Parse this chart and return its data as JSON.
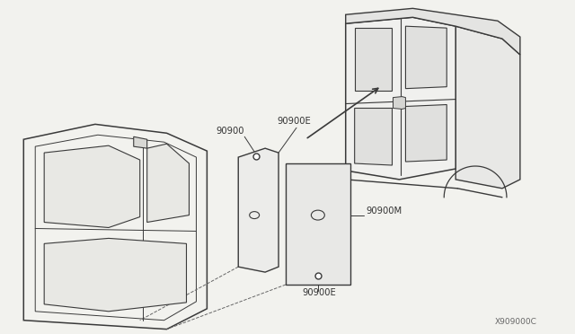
{
  "background_color": "#f2f2ee",
  "line_color": "#3a3a3a",
  "text_color": "#333333",
  "fig_width": 6.4,
  "fig_height": 3.72,
  "dpi": 100,
  "labels": {
    "part_num_bottom_right": "X909000C",
    "label_90900": "90900",
    "label_90900E_top": "90900E",
    "label_90900M": "90900M",
    "label_90900E_bot": "90900E"
  }
}
